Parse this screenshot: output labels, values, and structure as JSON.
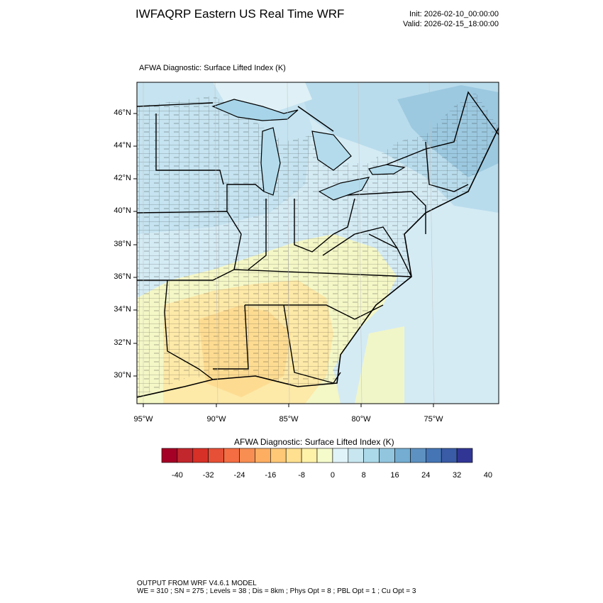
{
  "header": {
    "title": "IWFAQRP Eastern US Real Time WRF",
    "init": "Init: 2026-02-10_00:00:00",
    "valid": "Valid: 2026-02-15_18:00:00"
  },
  "map": {
    "subtitle": "AFWA Diagnostic: Surface Lifted Index   (K)",
    "lat_labels": [
      "46°N",
      "44°N",
      "42°N",
      "40°N",
      "38°N",
      "36°N",
      "34°N",
      "32°N",
      "30°N"
    ],
    "lon_labels": [
      "95°W",
      "90°W",
      "85°W",
      "80°W",
      "75°W"
    ]
  },
  "colorbar": {
    "title": "AFWA Diagnostic: Surface Lifted Index  (K)",
    "labels": [
      "-40",
      "-32",
      "-24",
      "-16",
      "-8",
      "0",
      "8",
      "16",
      "24",
      "32",
      "40"
    ],
    "colors": [
      "#a50026",
      "#c1272d",
      "#d73027",
      "#e65036",
      "#f46d43",
      "#f88e52",
      "#fdae61",
      "#fec877",
      "#fee090",
      "#fef1a8",
      "#f6fbcc",
      "#e0f3f8",
      "#c7e6f0",
      "#abd9e9",
      "#92c5de",
      "#74add1",
      "#5d91c1",
      "#4575b4",
      "#3a5ba6",
      "#313695"
    ]
  },
  "footer": {
    "line1": "OUTPUT FROM WRF V4.6.1 MODEL",
    "line2": "WE = 310 ; SN = 275 ; Levels = 38 ; Dis = 8km ; Phys Opt = 8 ; PBL Opt = 1 ; Cu Opt = 3"
  }
}
